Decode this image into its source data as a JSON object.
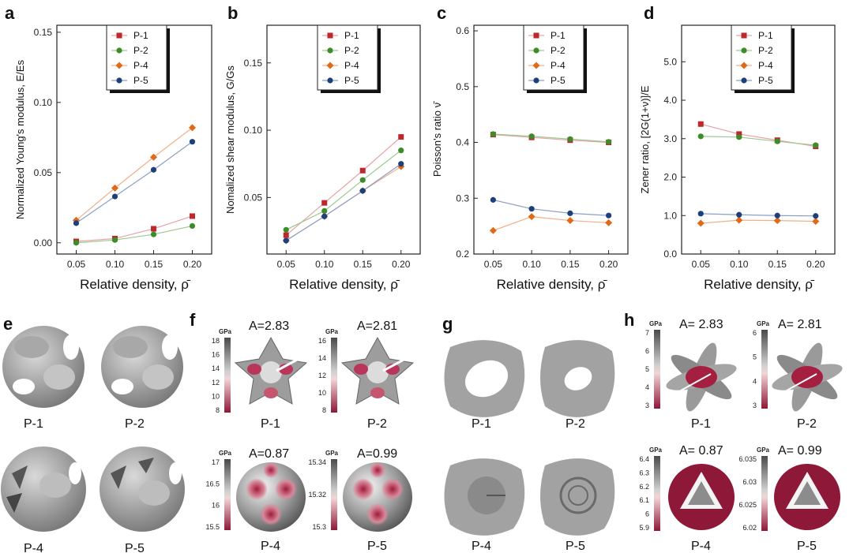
{
  "colors": {
    "P-1": "#c0272d",
    "P-2": "#3c8c2a",
    "P-4": "#e06a18",
    "P-5": "#1d3f7a",
    "lineP1": "#e8a3a3",
    "lineP2": "#9bc98f",
    "lineP4": "#f0b08a",
    "lineP5": "#8aa0c4"
  },
  "chart_data": [
    {
      "panel": "a",
      "type": "line",
      "x": [
        0.05,
        0.1,
        0.15,
        0.2
      ],
      "xlabel": "Relative density, ρ̄",
      "ylabel": "Normalized Young's modulus, E/Es",
      "ylim": [
        -0.008,
        0.155
      ],
      "yticks": [
        "0.00",
        "0.05",
        "0.10",
        "0.15"
      ],
      "ytickvals": [
        0,
        0.05,
        0.1,
        0.15
      ],
      "series": [
        {
          "name": "P-1",
          "values": [
            0.001,
            0.003,
            0.01,
            0.019
          ]
        },
        {
          "name": "P-2",
          "values": [
            0.0,
            0.002,
            0.006,
            0.012
          ]
        },
        {
          "name": "P-4",
          "values": [
            0.016,
            0.039,
            0.061,
            0.082
          ]
        },
        {
          "name": "P-5",
          "values": [
            0.014,
            0.033,
            0.052,
            0.072
          ]
        }
      ]
    },
    {
      "panel": "b",
      "type": "line",
      "x": [
        0.05,
        0.1,
        0.15,
        0.2
      ],
      "xlabel": "Relative density, ρ̄",
      "ylabel": "Nomalized shear modulus, G/Gs",
      "ylim": [
        0.008,
        0.178
      ],
      "yticks": [
        "0.05",
        "0.10",
        "0.15"
      ],
      "ytickvals": [
        0.05,
        0.1,
        0.15
      ],
      "series": [
        {
          "name": "P-1",
          "values": [
            0.022,
            0.046,
            0.07,
            0.095
          ]
        },
        {
          "name": "P-2",
          "values": [
            0.026,
            0.04,
            0.063,
            0.085
          ]
        },
        {
          "name": "P-4",
          "values": [
            0.018,
            0.036,
            0.055,
            0.073
          ]
        },
        {
          "name": "P-5",
          "values": [
            0.018,
            0.036,
            0.055,
            0.075
          ]
        }
      ]
    },
    {
      "panel": "c",
      "type": "line",
      "x": [
        0.05,
        0.1,
        0.15,
        0.2
      ],
      "xlabel": "Relative density, ρ̄",
      "ylabel": "Poisson's ratio ν̄",
      "ylim": [
        0.2,
        0.61
      ],
      "yticks": [
        "0.2",
        "0.3",
        "0.4",
        "0.5",
        "0.6"
      ],
      "ytickvals": [
        0.2,
        0.3,
        0.4,
        0.5,
        0.6
      ],
      "series": [
        {
          "name": "P-1",
          "values": [
            0.414,
            0.409,
            0.404,
            0.4
          ]
        },
        {
          "name": "P-2",
          "values": [
            0.415,
            0.411,
            0.406,
            0.401
          ]
        },
        {
          "name": "P-4",
          "values": [
            0.242,
            0.267,
            0.26,
            0.256
          ]
        },
        {
          "name": "P-5",
          "values": [
            0.297,
            0.281,
            0.273,
            0.269
          ]
        }
      ]
    },
    {
      "panel": "d",
      "type": "line",
      "x": [
        0.05,
        0.1,
        0.15,
        0.2
      ],
      "xlabel": "Relative density, ρ̄",
      "ylabel": "Zener ratio, [2G(1+ν)]/E",
      "ylim": [
        0.0,
        5.95
      ],
      "yticks": [
        "0.0",
        "1.0",
        "2.0",
        "3.0",
        "4.0",
        "5.0"
      ],
      "ytickvals": [
        0,
        1,
        2,
        3,
        4,
        5
      ],
      "series": [
        {
          "name": "P-1",
          "values": [
            3.38,
            3.12,
            2.96,
            2.8
          ]
        },
        {
          "name": "P-2",
          "values": [
            3.06,
            3.04,
            2.93,
            2.83
          ]
        },
        {
          "name": "P-4",
          "values": [
            0.8,
            0.88,
            0.87,
            0.85
          ]
        },
        {
          "name": "P-5",
          "values": [
            1.05,
            1.02,
            1.0,
            0.99
          ]
        }
      ]
    }
  ],
  "legend": [
    "P-1",
    "P-2",
    "P-4",
    "P-5"
  ],
  "panels": {
    "a": "a",
    "b": "b",
    "c": "c",
    "d": "d",
    "e": "e",
    "f": "f",
    "g": "g",
    "h": "h"
  },
  "labels": {
    "p1": "P-1",
    "p2": "P-2",
    "p4": "P-4",
    "p5": "P-5"
  },
  "annotations": {
    "f_A_p1": "A=2.83",
    "f_A_p2": "A=2.81",
    "f_A_p4": "A=0.87",
    "f_A_p5": "A=0.99",
    "h_A_p1": "A= 2.83",
    "h_A_p2": "A= 2.81",
    "h_A_p4": "A= 0.87",
    "h_A_p5": "A= 0.99"
  },
  "colorbars": {
    "unit": "GPa",
    "f_p1": [
      "18",
      "16",
      "14",
      "12",
      "10",
      "8"
    ],
    "f_p2": [
      "16",
      "14",
      "12",
      "10",
      "8"
    ],
    "f_p4": [
      "17",
      "16.5",
      "16",
      "15.5"
    ],
    "f_p5": [
      "15.34",
      "15.32",
      "15.3"
    ],
    "h_p1": [
      "7",
      "6",
      "5",
      "4",
      "3"
    ],
    "h_p2": [
      "6",
      "5",
      "4",
      "3"
    ],
    "h_p4": [
      "6.4",
      "6.3",
      "6.2",
      "6.1",
      "6",
      "5.9"
    ],
    "h_p5": [
      "6.035",
      "6.03",
      "6.025",
      "6.02"
    ]
  }
}
